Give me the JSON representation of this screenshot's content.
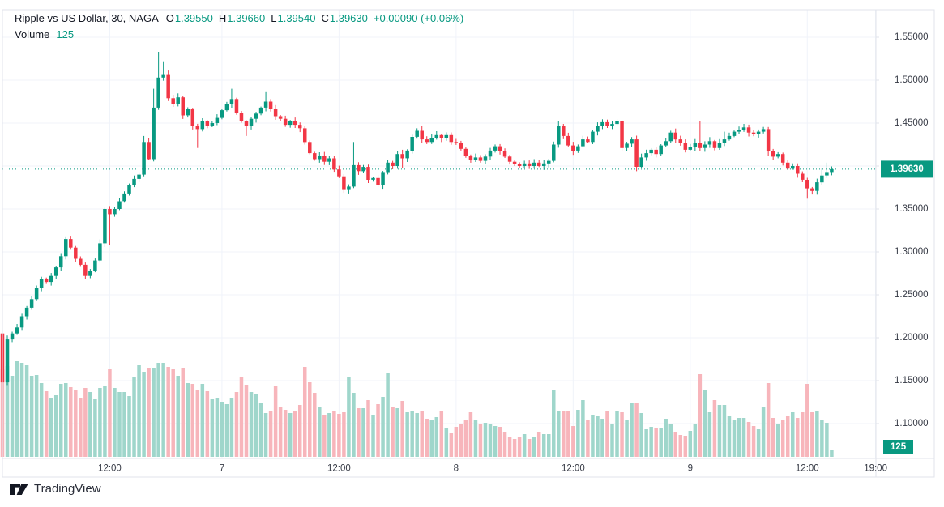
{
  "header": {
    "title": "Ripple vs US Dollar, 30, NAGA",
    "o_label": "O",
    "o": "1.39550",
    "h_label": "H",
    "h": "1.39660",
    "l_label": "L",
    "l": "1.39540",
    "c_label": "C",
    "c": "1.39630",
    "change": "+0.00090 (+0.06%)",
    "volume_label": "Volume",
    "volume_value": "125"
  },
  "price_axis": {
    "labels": [
      "1.55000",
      "1.50000",
      "1.45000",
      "1.40000",
      "1.35000",
      "1.30000",
      "1.25000",
      "1.20000",
      "1.15000",
      "1.10000"
    ],
    "values": [
      1.55,
      1.5,
      1.45,
      1.4,
      1.35,
      1.3,
      1.25,
      1.2,
      1.15,
      1.1
    ],
    "last_price_badge": "1.39630",
    "last_volume_badge": "125"
  },
  "time_axis": {
    "ticks": [
      {
        "i": 22,
        "label": "12:00"
      },
      {
        "i": 45,
        "label": "7"
      },
      {
        "i": 69,
        "label": "12:00"
      },
      {
        "i": 93,
        "label": "8"
      },
      {
        "i": 117,
        "label": "12:00"
      },
      {
        "i": 141,
        "label": "9"
      },
      {
        "i": 165,
        "label": "12:00"
      },
      {
        "i": 179,
        "label": "19:00"
      }
    ]
  },
  "footer": {
    "brand": "TradingView"
  },
  "colors": {
    "up": "#089981",
    "down": "#f23645",
    "vol_up": "#9fd6cb",
    "vol_down": "#f7b5bb",
    "grid": "#f0f3fa",
    "border": "#e0e3eb",
    "axis_text": "#363a45",
    "text_dark": "#131722",
    "badge_text": "#ffffff"
  },
  "chart_data": {
    "type": "candlestick",
    "title": "Ripple vs US Dollar",
    "interval_minutes": 30,
    "exchange": "NAGA",
    "legend_position": "top-left",
    "grid": true,
    "ylim": [
      1.09,
      1.56
    ],
    "price_line": 1.3963,
    "last_ohlc": {
      "open": 1.3955,
      "high": 1.3966,
      "low": 1.3954,
      "close": 1.3963,
      "change": "+0.00090 (+0.06%)"
    },
    "last_volume": 125,
    "first_open": 1.205,
    "closes": [
      1.148,
      1.198,
      1.205,
      1.212,
      1.225,
      1.235,
      1.245,
      1.258,
      1.268,
      1.265,
      1.272,
      1.282,
      1.295,
      1.315,
      1.305,
      1.292,
      1.285,
      1.272,
      1.278,
      1.29,
      1.31,
      1.35,
      1.344,
      1.35,
      1.359,
      1.368,
      1.378,
      1.385,
      1.39,
      1.428,
      1.408,
      1.468,
      1.503,
      1.507,
      1.479,
      1.472,
      1.48,
      1.459,
      1.466,
      1.447,
      1.443,
      1.452,
      1.447,
      1.45,
      1.456,
      1.465,
      1.472,
      1.478,
      1.462,
      1.452,
      1.447,
      1.455,
      1.461,
      1.468,
      1.475,
      1.467,
      1.458,
      1.455,
      1.448,
      1.452,
      1.448,
      1.444,
      1.428,
      1.415,
      1.408,
      1.412,
      1.405,
      1.409,
      1.396,
      1.388,
      1.373,
      1.376,
      1.401,
      1.394,
      1.399,
      1.384,
      1.386,
      1.378,
      1.393,
      1.404,
      1.4,
      1.414,
      1.409,
      1.418,
      1.434,
      1.441,
      1.431,
      1.428,
      1.433,
      1.436,
      1.432,
      1.436,
      1.428,
      1.427,
      1.42,
      1.412,
      1.407,
      1.41,
      1.406,
      1.411,
      1.418,
      1.423,
      1.417,
      1.411,
      1.405,
      1.402,
      1.4,
      1.403,
      1.4,
      1.404,
      1.4,
      1.403,
      1.406,
      1.425,
      1.447,
      1.435,
      1.424,
      1.418,
      1.423,
      1.431,
      1.428,
      1.44,
      1.447,
      1.451,
      1.447,
      1.449,
      1.452,
      1.421,
      1.426,
      1.431,
      1.399,
      1.41,
      1.415,
      1.419,
      1.414,
      1.424,
      1.429,
      1.439,
      1.431,
      1.427,
      1.419,
      1.422,
      1.427,
      1.421,
      1.425,
      1.429,
      1.421,
      1.427,
      1.431,
      1.435,
      1.44,
      1.442,
      1.445,
      1.439,
      1.437,
      1.44,
      1.443,
      1.417,
      1.411,
      1.414,
      1.404,
      1.397,
      1.4,
      1.391,
      1.384,
      1.374,
      1.371,
      1.381,
      1.389,
      1.393,
      1.3963
    ],
    "wick_overrides": {
      "0": {
        "l": 1.138
      },
      "22": {
        "l": 1.308
      },
      "29": {
        "h": 1.435
      },
      "31": {
        "h": 1.49
      },
      "32": {
        "h": 1.533
      },
      "33": {
        "h": 1.522
      },
      "40": {
        "l": 1.421
      },
      "47": {
        "h": 1.49
      },
      "50": {
        "l": 1.435
      },
      "54": {
        "h": 1.487
      },
      "71": {
        "l": 1.368
      },
      "72": {
        "h": 1.428
      },
      "82": {
        "h": 1.419,
        "l": 1.398
      },
      "86": {
        "h": 1.447
      },
      "114": {
        "h": 1.452
      },
      "117": {
        "l": 1.413
      },
      "130": {
        "l": 1.394
      },
      "143": {
        "h": 1.452
      },
      "148": {
        "h": 1.44
      },
      "157": {
        "l": 1.412
      },
      "165": {
        "l": 1.362
      },
      "168": {
        "h": 1.398
      },
      "169": {
        "h": 1.404
      },
      "170": {
        "h": 1.3995
      }
    },
    "volume_heights": [
      108,
      112,
      100,
      118,
      116,
      113,
      100,
      101,
      91,
      81,
      73,
      76,
      90,
      91,
      86,
      83,
      73,
      85,
      80,
      71,
      85,
      88,
      108,
      85,
      80,
      80,
      75,
      98,
      113,
      105,
      110,
      110,
      116,
      116,
      111,
      108,
      100,
      110,
      91,
      90,
      83,
      90,
      81,
      71,
      73,
      68,
      65,
      72,
      80,
      99,
      89,
      80,
      77,
      67,
      54,
      57,
      87,
      62,
      58,
      54,
      56,
      64,
      111,
      92,
      79,
      62,
      52,
      54,
      56,
      53,
      55,
      98,
      79,
      60,
      60,
      70,
      52,
      65,
      74,
      104,
      62,
      60,
      69,
      55,
      56,
      54,
      57,
      47,
      45,
      49,
      57,
      35,
      29,
      37,
      40,
      45,
      55,
      45,
      40,
      42,
      40,
      38,
      37,
      30,
      25,
      22,
      25,
      28,
      22,
      25,
      30,
      28,
      28,
      82,
      56,
      56,
      56,
      38,
      58,
      70,
      46,
      52,
      50,
      47,
      56,
      40,
      56,
      55,
      46,
      67,
      67,
      54,
      34,
      37,
      35,
      36,
      47,
      41,
      30,
      27,
      26,
      32,
      40,
      102,
      82,
      55,
      70,
      64,
      64,
      50,
      46,
      48,
      48,
      43,
      38,
      34,
      61,
      91,
      48,
      40,
      45,
      50,
      55,
      48,
      55,
      90,
      55,
      57,
      45,
      42,
      8
    ]
  }
}
